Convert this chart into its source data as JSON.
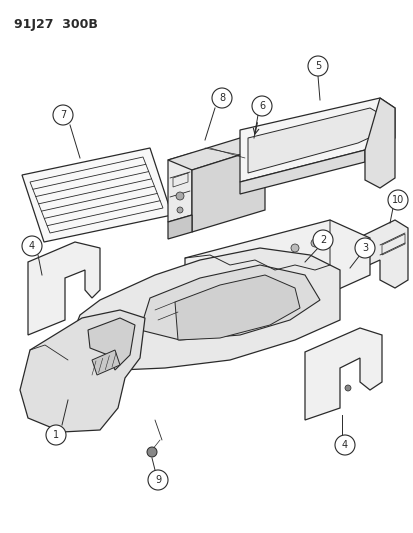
{
  "title": "91J27  300B",
  "bg": "#ffffff",
  "lc": "#2a2a2a",
  "fc": "#f0f0f0",
  "fc2": "#e0e0e0",
  "fc3": "#d8d8d8"
}
